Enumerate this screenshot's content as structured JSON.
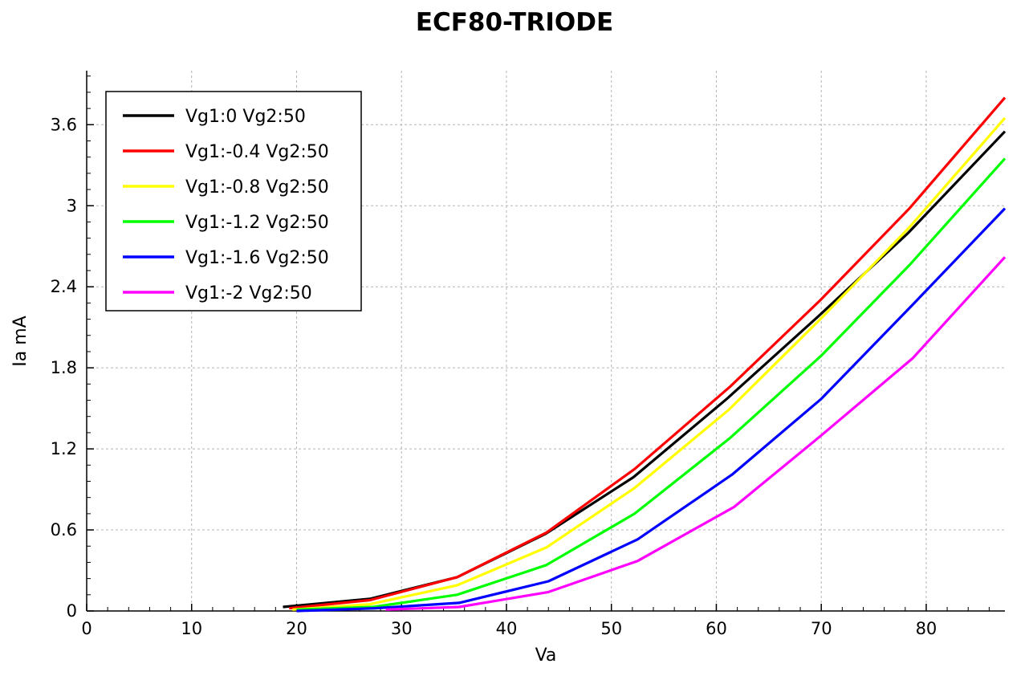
{
  "chart_data": {
    "type": "line",
    "title": "ECF80-TRIODE",
    "xlabel": "Va",
    "ylabel": "Ia mA",
    "xlim": [
      0,
      87.5
    ],
    "ylim": [
      0,
      4.0
    ],
    "xticks": [
      0,
      10,
      20,
      30,
      40,
      50,
      60,
      70,
      80
    ],
    "xtick_labels": [
      "0",
      "10",
      "20",
      "30",
      "40",
      "50",
      "60",
      "70",
      "80"
    ],
    "yticks": [
      0,
      0.6,
      1.2,
      1.8,
      2.4,
      3.0,
      3.6
    ],
    "ytick_labels": [
      "0",
      "0.6",
      "1.2",
      "1.8",
      "2.4",
      "3",
      "3.6"
    ],
    "grid": true,
    "legend_position": "top-left",
    "series": [
      {
        "name": "Vg1:0 Vg2:50",
        "color": "#000000",
        "x": [
          18.7,
          27.0,
          35.3,
          43.7,
          52.1,
          61.0,
          69.7,
          78.3,
          87.5
        ],
        "y": [
          0.03,
          0.09,
          0.25,
          0.57,
          0.99,
          1.57,
          2.18,
          2.8,
          3.55
        ]
      },
      {
        "name": "Vg1:-0.4 Vg2:50",
        "color": "#ff0000",
        "x": [
          19.3,
          27.0,
          35.3,
          43.8,
          52.2,
          61.3,
          69.9,
          78.4,
          87.5
        ],
        "y": [
          0.02,
          0.08,
          0.25,
          0.58,
          1.05,
          1.66,
          2.3,
          2.98,
          3.8
        ]
      },
      {
        "name": "Vg1:-0.8 Vg2:50",
        "color": "#ffff00",
        "x": [
          19.6,
          27.0,
          35.3,
          43.8,
          52.2,
          61.2,
          69.9,
          78.4,
          87.5
        ],
        "y": [
          0.01,
          0.05,
          0.19,
          0.47,
          0.91,
          1.49,
          2.16,
          2.84,
          3.65
        ]
      },
      {
        "name": "Vg1:-1.2 Vg2:50",
        "color": "#00ff00",
        "x": [
          20.0,
          27.3,
          35.3,
          43.8,
          52.2,
          61.3,
          70.0,
          78.4,
          87.5
        ],
        "y": [
          0.01,
          0.03,
          0.12,
          0.34,
          0.72,
          1.28,
          1.89,
          2.56,
          3.35
        ]
      },
      {
        "name": "Vg1:-1.6 Vg2:50",
        "color": "#0000ff",
        "x": [
          20.0,
          27.5,
          35.5,
          44.0,
          52.5,
          61.5,
          70.0,
          78.5,
          87.5
        ],
        "y": [
          0.0,
          0.02,
          0.06,
          0.22,
          0.53,
          1.01,
          1.57,
          2.25,
          2.98
        ]
      },
      {
        "name": "Vg1:-2 Vg2:50",
        "color": "#ff00ff",
        "x": [
          28.5,
          35.5,
          44.0,
          52.5,
          61.7,
          70.0,
          78.7,
          87.5
        ],
        "y": [
          0.01,
          0.03,
          0.14,
          0.37,
          0.77,
          1.3,
          1.87,
          2.62
        ]
      }
    ]
  }
}
